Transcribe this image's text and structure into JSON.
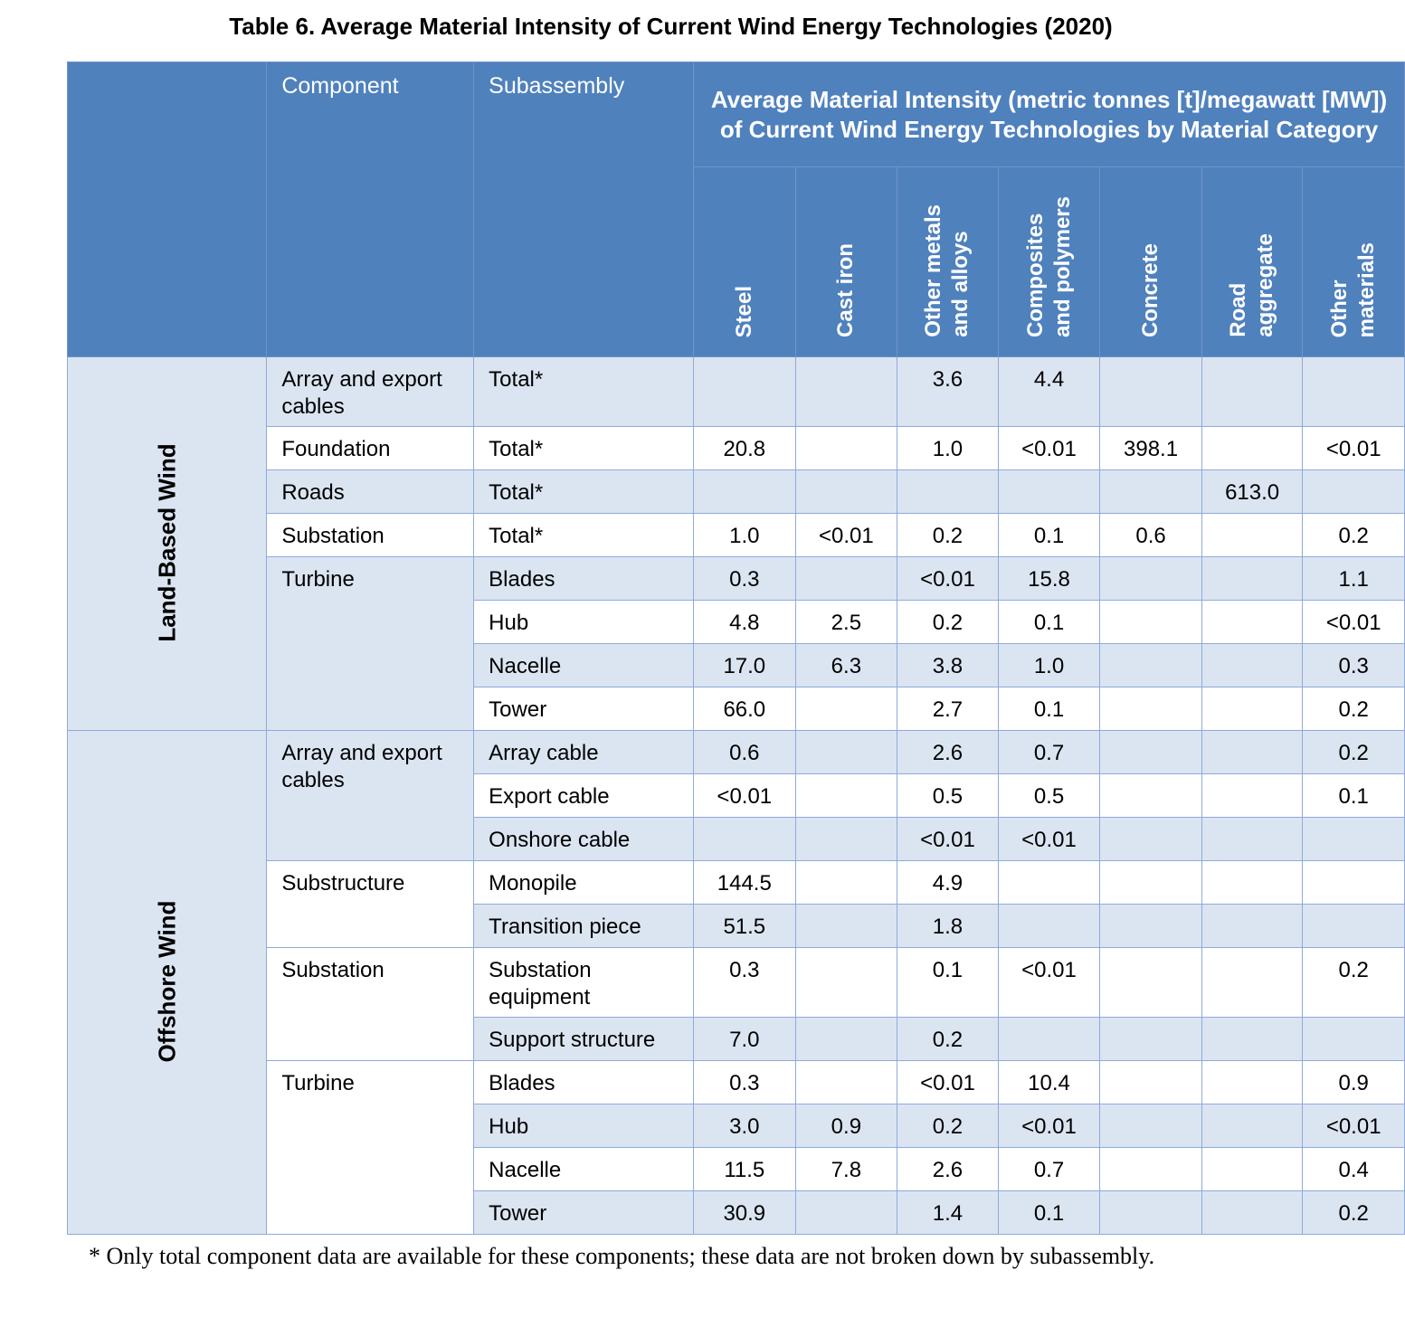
{
  "title": "Table 6. Average Material Intensity of Current Wind Energy Technologies (2020)",
  "header": {
    "component": "Component",
    "subassembly": "Subassembly",
    "group": "Average Material Intensity (metric tonnes [t]/megawatt [MW]) of Current Wind Energy Technologies by Material Category",
    "materials": [
      "Steel",
      "Cast iron",
      "Other metals\nand alloys",
      "Composites\nand polymers",
      "Concrete",
      "Road\naggregate",
      "Other\nmaterials"
    ]
  },
  "groups": [
    "Land-Based Wind",
    "Offshore Wind"
  ],
  "rows": [
    {
      "component": "Array and export cables",
      "subassembly": "Total*",
      "values": [
        "",
        "",
        "3.6",
        "4.4",
        "",
        "",
        ""
      ]
    },
    {
      "component": "Foundation",
      "subassembly": "Total*",
      "values": [
        "20.8",
        "",
        "1.0",
        "<0.01",
        "398.1",
        "",
        "<0.01"
      ]
    },
    {
      "component": "Roads",
      "subassembly": "Total*",
      "values": [
        "",
        "",
        "",
        "",
        "",
        "613.0",
        ""
      ]
    },
    {
      "component": "Substation",
      "subassembly": "Total*",
      "values": [
        "1.0",
        "<0.01",
        "0.2",
        "0.1",
        "0.6",
        "",
        "0.2"
      ]
    },
    {
      "component": "Turbine",
      "subassembly": "Blades",
      "values": [
        "0.3",
        "",
        "<0.01",
        "15.8",
        "",
        "",
        "1.1"
      ]
    },
    {
      "component": "",
      "subassembly": "Hub",
      "values": [
        "4.8",
        "2.5",
        "0.2",
        "0.1",
        "",
        "",
        "<0.01"
      ]
    },
    {
      "component": "",
      "subassembly": "Nacelle",
      "values": [
        "17.0",
        "6.3",
        "3.8",
        "1.0",
        "",
        "",
        "0.3"
      ]
    },
    {
      "component": "",
      "subassembly": "Tower",
      "values": [
        "66.0",
        "",
        "2.7",
        "0.1",
        "",
        "",
        "0.2"
      ]
    },
    {
      "component": "Array and export cables",
      "subassembly": "Array cable",
      "values": [
        "0.6",
        "",
        "2.6",
        "0.7",
        "",
        "",
        "0.2"
      ]
    },
    {
      "component": "",
      "subassembly": "Export cable",
      "values": [
        "<0.01",
        "",
        "0.5",
        "0.5",
        "",
        "",
        "0.1"
      ]
    },
    {
      "component": "",
      "subassembly": "Onshore cable",
      "values": [
        "",
        "",
        "<0.01",
        "<0.01",
        "",
        "",
        ""
      ]
    },
    {
      "component": "Substructure",
      "subassembly": "Monopile",
      "values": [
        "144.5",
        "",
        "4.9",
        "",
        "",
        "",
        ""
      ]
    },
    {
      "component": "",
      "subassembly": "Transition piece",
      "values": [
        "51.5",
        "",
        "1.8",
        "",
        "",
        "",
        ""
      ]
    },
    {
      "component": "Substation",
      "subassembly": "Substation equipment",
      "values": [
        "0.3",
        "",
        "0.1",
        "<0.01",
        "",
        "",
        "0.2"
      ]
    },
    {
      "component": "",
      "subassembly": "Support structure",
      "values": [
        "7.0",
        "",
        "0.2",
        "",
        "",
        "",
        ""
      ]
    },
    {
      "component": "Turbine",
      "subassembly": "Blades",
      "values": [
        "0.3",
        "",
        "<0.01",
        "10.4",
        "",
        "",
        "0.9"
      ]
    },
    {
      "component": "",
      "subassembly": "Hub",
      "values": [
        "3.0",
        "0.9",
        "0.2",
        "<0.01",
        "",
        "",
        "<0.01"
      ]
    },
    {
      "component": "",
      "subassembly": "Nacelle",
      "values": [
        "11.5",
        "7.8",
        "2.6",
        "0.7",
        "",
        "",
        "0.4"
      ]
    },
    {
      "component": "",
      "subassembly": "Tower",
      "values": [
        "30.9",
        "",
        "1.4",
        "0.1",
        "",
        "",
        "0.2"
      ]
    }
  ],
  "footnote": "* Only total component data are available for these components; these data are not broken down by subassembly."
}
